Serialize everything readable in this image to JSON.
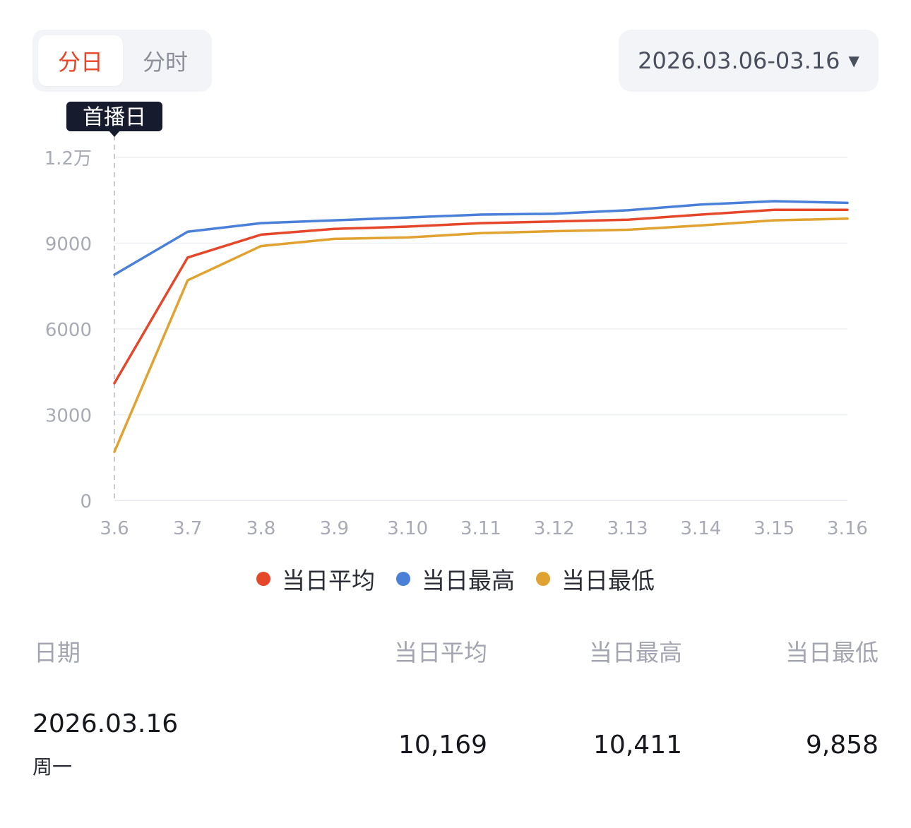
{
  "tabs": [
    {
      "label": "分日",
      "active": true
    },
    {
      "label": "分时",
      "active": false
    }
  ],
  "date_range": {
    "label": "2026.03.06-03.16",
    "arrow": "▼"
  },
  "colors": {
    "accent": "#e5472a",
    "avg": "#e5472a",
    "max": "#4a80d8",
    "min": "#e0a230"
  },
  "chart_data": {
    "type": "line",
    "categories": [
      "3.6",
      "3.7",
      "3.8",
      "3.9",
      "3.10",
      "3.11",
      "3.12",
      "3.13",
      "3.14",
      "3.15",
      "3.16"
    ],
    "y_ticks": [
      "0",
      "3000",
      "6000",
      "9000",
      "1.2万"
    ],
    "y_tick_values": [
      0,
      3000,
      6000,
      9000,
      12000
    ],
    "ylim": [
      0,
      12000
    ],
    "grid": true,
    "annotation": {
      "label": "首播日",
      "category": "3.6"
    },
    "legend_position": "bottom",
    "series": [
      {
        "name": "当日平均",
        "color": "#e5472a",
        "values": [
          4100,
          8500,
          9300,
          9500,
          9580,
          9700,
          9760,
          9820,
          10000,
          10169,
          10169
        ]
      },
      {
        "name": "当日最高",
        "color": "#4a80d8",
        "values": [
          7900,
          9400,
          9700,
          9800,
          9900,
          10000,
          10030,
          10150,
          10350,
          10470,
          10411
        ]
      },
      {
        "name": "当日最低",
        "color": "#e0a230",
        "values": [
          1700,
          7700,
          8900,
          9150,
          9200,
          9350,
          9420,
          9470,
          9620,
          9800,
          9858
        ]
      }
    ]
  },
  "table": {
    "headers": [
      "日期",
      "当日平均",
      "当日最高",
      "当日最低"
    ],
    "rows": [
      {
        "date": "2026.03.16",
        "weekday": "周一",
        "avg": "10,169",
        "max": "10,411",
        "min": "9,858"
      }
    ]
  }
}
